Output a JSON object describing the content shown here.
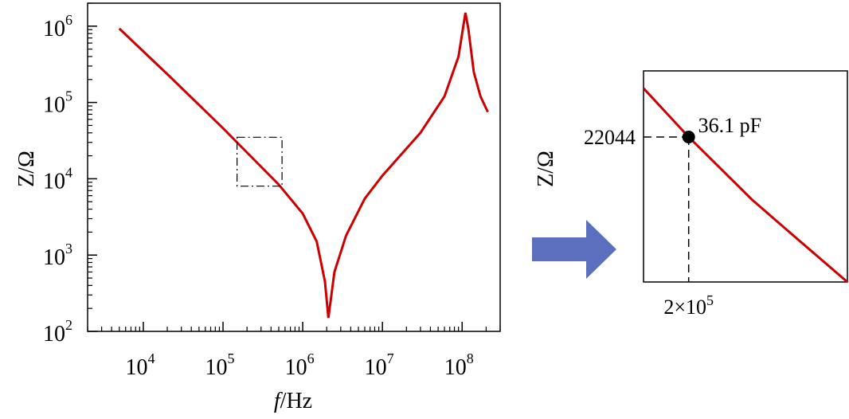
{
  "chart_data": [
    {
      "type": "line",
      "title": "",
      "xlabel_italic": "f",
      "xlabel_rest": "/Hz",
      "ylabel": "Z/Ω",
      "x_scale": "log",
      "y_scale": "log",
      "xlim": [
        2000,
        300000000
      ],
      "ylim": [
        100,
        2000000
      ],
      "x_ticks": [
        {
          "base": "10",
          "exp": "4",
          "value": 10000
        },
        {
          "base": "10",
          "exp": "5",
          "value": 100000
        },
        {
          "base": "10",
          "exp": "6",
          "value": 1000000
        },
        {
          "base": "10",
          "exp": "7",
          "value": 10000000
        },
        {
          "base": "10",
          "exp": "8",
          "value": 100000000
        }
      ],
      "y_ticks": [
        {
          "base": "10",
          "exp": "2",
          "value": 100
        },
        {
          "base": "10",
          "exp": "3",
          "value": 1000
        },
        {
          "base": "10",
          "exp": "4",
          "value": 10000
        },
        {
          "base": "10",
          "exp": "5",
          "value": 100000
        },
        {
          "base": "10",
          "exp": "6",
          "value": 1000000
        }
      ],
      "series": [
        {
          "name": "impedance",
          "color": "#cc0000",
          "x": [
            5000,
            20000,
            100000,
            200000,
            500000,
            1000000,
            1500000,
            1900000,
            2100000,
            2500000,
            3500000,
            6000000,
            10000000,
            30000000,
            60000000,
            90000000,
            110000000,
            120000000,
            140000000,
            170000000,
            210000000
          ],
          "y": [
            930000,
            235000,
            46000,
            22044,
            8400,
            3500,
            1500,
            450,
            150,
            600,
            1800,
            5500,
            11000,
            40000,
            120000,
            400000,
            1500000,
            900000,
            250000,
            120000,
            75000
          ]
        }
      ],
      "zoom_box": {
        "x": [
          150000,
          550000
        ],
        "y": [
          8000,
          35000
        ]
      }
    },
    {
      "type": "line",
      "title": "",
      "ylabel": "Z/Ω",
      "x_scale": "log",
      "y_scale": "log",
      "xlim": [
        150000,
        550000
      ],
      "ylim": [
        8000,
        35000
      ],
      "x_tick_label": {
        "coef": "2×10",
        "exp": "5"
      },
      "y_tick_label": "22044",
      "marker": {
        "x": 200000,
        "y": 22044,
        "label": "36.1 pF"
      },
      "series": [
        {
          "name": "impedance-zoom",
          "color": "#cc0000",
          "x": [
            150000,
            200000,
            300000,
            400000,
            550000
          ],
          "y": [
            31000,
            22044,
            14200,
            10800,
            8000
          ]
        }
      ]
    }
  ],
  "arrow": {
    "color": "#5b6fbd"
  }
}
